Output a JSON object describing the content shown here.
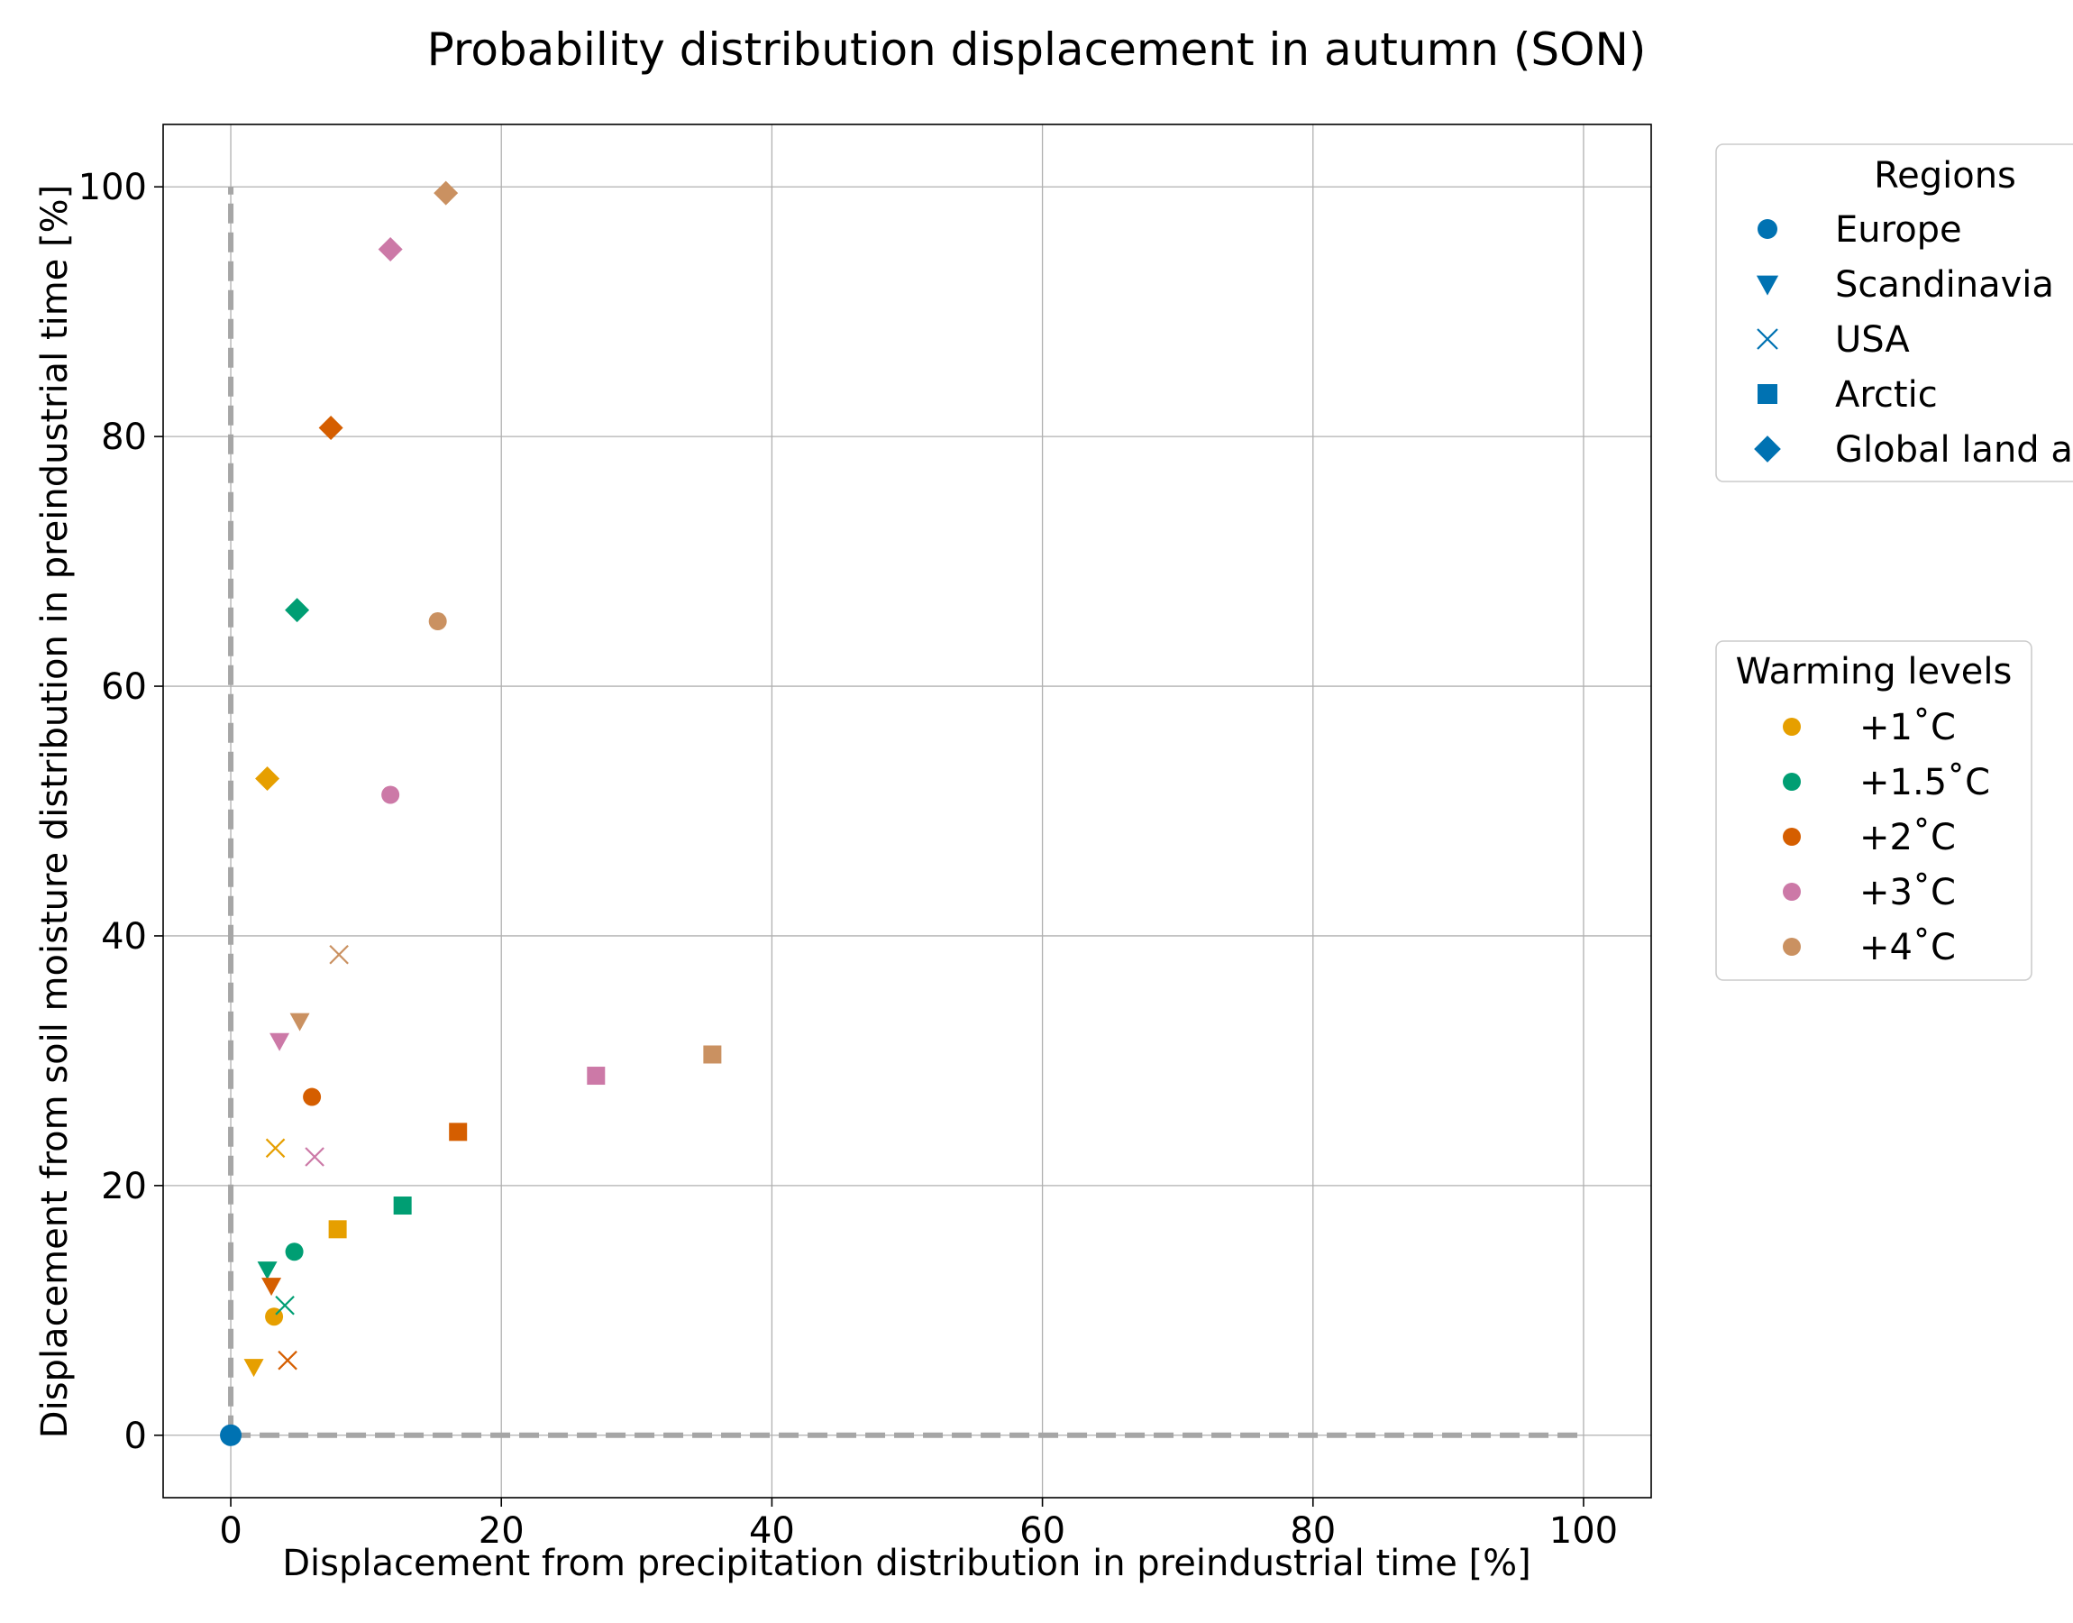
{
  "chart_data": {
    "type": "scatter",
    "title": "Probability distribution displacement in autumn (SON)",
    "xlabel": "Displacement from precipitation distribution in preindustrial time [%]",
    "ylabel": "Displacement from soil moisture distribution in preindustrial time [%]",
    "xlim": [
      -5,
      105
    ],
    "ylim": [
      -5,
      105
    ],
    "xticks": [
      0,
      20,
      40,
      60,
      80,
      100
    ],
    "yticks": [
      0,
      20,
      40,
      60,
      80,
      100
    ],
    "grid": true,
    "reference_lines": {
      "style": "dashed",
      "color": "#a6a6a6",
      "vertical_x": 0,
      "horizontal_y": 0,
      "max": 100
    },
    "regions_legend": {
      "title": "Regions",
      "placement": "outside-top-right",
      "entries": [
        {
          "label": "Europe",
          "marker": "circle"
        },
        {
          "label": "Scandinavia",
          "marker": "triangle-down"
        },
        {
          "label": "USA",
          "marker": "x"
        },
        {
          "label": "Arctic",
          "marker": "square"
        },
        {
          "label": "Global land a",
          "marker": "diamond"
        }
      ],
      "marker_color": "#0072b2"
    },
    "warming_legend": {
      "title": "Warming levels",
      "placement": "outside-right",
      "entries": [
        {
          "label": "+1˚C",
          "color": "#e69f00"
        },
        {
          "label": "+1.5˚C",
          "color": "#009e73"
        },
        {
          "label": "+2˚C",
          "color": "#d55e00"
        },
        {
          "label": "+3˚C",
          "color": "#cc79a7"
        },
        {
          "label": "+4˚C",
          "color": "#ca9161"
        }
      ]
    },
    "series": [
      {
        "region": "Europe",
        "marker": "circle",
        "points": [
          {
            "level": "+1˚C",
            "x": 3.2,
            "y": 9.5
          },
          {
            "level": "+1.5˚C",
            "x": 4.7,
            "y": 14.7
          },
          {
            "level": "+2˚C",
            "x": 6.0,
            "y": 27.1
          },
          {
            "level": "+3˚C",
            "x": 11.8,
            "y": 51.3
          },
          {
            "level": "+4˚C",
            "x": 15.3,
            "y": 65.2
          }
        ]
      },
      {
        "region": "Scandinavia",
        "marker": "triangle-down",
        "points": [
          {
            "level": "+1˚C",
            "x": 1.7,
            "y": 5.5
          },
          {
            "level": "+1.5˚C",
            "x": 2.7,
            "y": 13.3
          },
          {
            "level": "+2˚C",
            "x": 3.0,
            "y": 12.0
          },
          {
            "level": "+3˚C",
            "x": 3.6,
            "y": 31.6
          },
          {
            "level": "+4˚C",
            "x": 5.1,
            "y": 33.2
          }
        ]
      },
      {
        "region": "USA",
        "marker": "x",
        "points": [
          {
            "level": "+1˚C",
            "x": 3.3,
            "y": 23.0
          },
          {
            "level": "+1.5˚C",
            "x": 4.0,
            "y": 10.4
          },
          {
            "level": "+2˚C",
            "x": 4.2,
            "y": 6.0
          },
          {
            "level": "+3˚C",
            "x": 6.2,
            "y": 22.3
          },
          {
            "level": "+4˚C",
            "x": 8.0,
            "y": 38.5
          }
        ]
      },
      {
        "region": "Arctic",
        "marker": "square",
        "points": [
          {
            "level": "+1˚C",
            "x": 7.9,
            "y": 16.5
          },
          {
            "level": "+1.5˚C",
            "x": 12.7,
            "y": 18.4
          },
          {
            "level": "+2˚C",
            "x": 16.8,
            "y": 24.3
          },
          {
            "level": "+3˚C",
            "x": 27.0,
            "y": 28.8
          },
          {
            "level": "+4˚C",
            "x": 35.6,
            "y": 30.5
          }
        ]
      },
      {
        "region": "Global land a",
        "marker": "diamond",
        "points": [
          {
            "level": "+1˚C",
            "x": 2.7,
            "y": 52.6
          },
          {
            "level": "+1.5˚C",
            "x": 4.9,
            "y": 66.1
          },
          {
            "level": "+2˚C",
            "x": 7.4,
            "y": 80.7
          },
          {
            "level": "+3˚C",
            "x": 11.8,
            "y": 95.0
          },
          {
            "level": "+4˚C",
            "x": 15.9,
            "y": 99.5
          }
        ]
      }
    ],
    "reference_point": {
      "x": 0,
      "y": 0,
      "color": "#0072b2"
    }
  }
}
